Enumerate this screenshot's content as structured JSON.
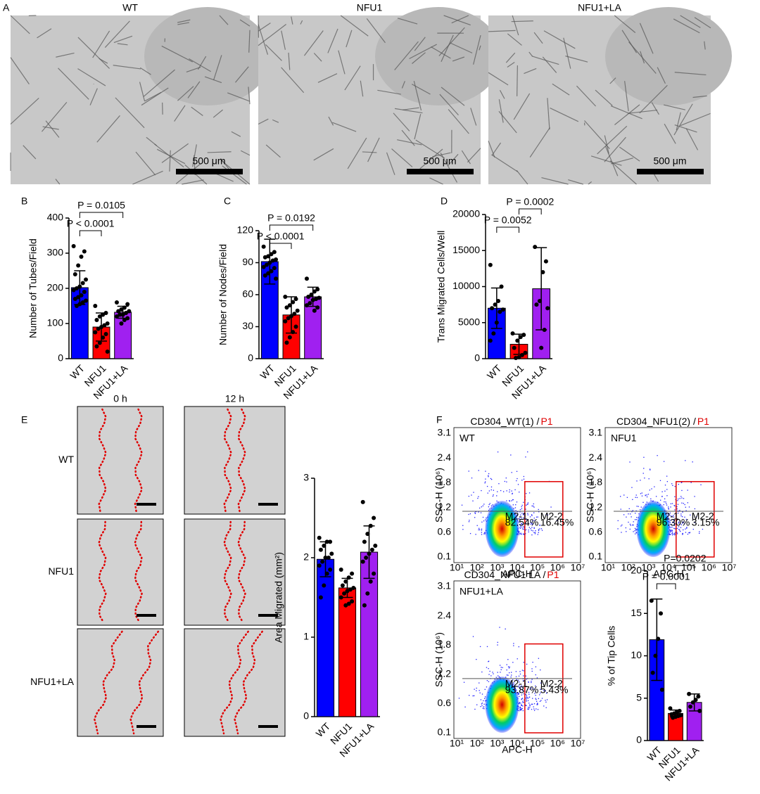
{
  "panel_letters": [
    "A",
    "B",
    "C",
    "D",
    "E",
    "F"
  ],
  "micrographs": {
    "titles": [
      "WT",
      "NFU1",
      "NFU1+LA"
    ],
    "scale_bar": "500 μm"
  },
  "wound": {
    "columns": [
      "0 h",
      "12 h"
    ],
    "rows": [
      "WT",
      "NFU1",
      "NFU1+LA"
    ]
  },
  "flow": {
    "y_axis": "SSC-H (10⁶)",
    "x_axis": "APC-H",
    "yticks": [
      "0.1",
      "0.6",
      "1.2",
      "1.8",
      "2.4",
      "3.1"
    ],
    "xticks": [
      "10¹",
      "10²",
      "10³",
      "10⁴",
      "10⁵",
      "10⁶",
      "10⁷"
    ],
    "plots": [
      {
        "header": "CD304_WT(1) /",
        "gate": "P1",
        "label": "WT",
        "left_gate": "M2-1",
        "left_pct": "82.54%",
        "right_gate": "M2-2",
        "right_pct": "16.45%"
      },
      {
        "header": "CD304_NFU1(2) /",
        "gate": "P1",
        "label": "NFU1",
        "left_gate": "M2-1",
        "left_pct": "96.30%",
        "right_gate": "M2-2",
        "right_pct": "3.15%"
      },
      {
        "header": "CD304_NFU1 LA /",
        "gate": "P1",
        "label": "NFU1+LA",
        "left_gate": "M2-1",
        "left_pct": "93.87%",
        "right_gate": "M2-2",
        "right_pct": "5.43%"
      }
    ]
  },
  "chart_data": [
    {
      "type": "bar",
      "y_label": "Number of Tubes/Field",
      "categories": [
        "WT",
        "NFU1",
        "NFU1+LA"
      ],
      "colors": [
        "#0000ff",
        "#ff0000",
        "#a020f0"
      ],
      "values": [
        202,
        90,
        132
      ],
      "errors": [
        48,
        40,
        17
      ],
      "points": [
        [
          320,
          305,
          290,
          265,
          240,
          225,
          215,
          205,
          200,
          195,
          190,
          180,
          175,
          170,
          165,
          160,
          155,
          150
        ],
        [
          150,
          130,
          125,
          120,
          110,
          100,
          95,
          90,
          85,
          75,
          70,
          60,
          45,
          35,
          20
        ],
        [
          160,
          155,
          145,
          140,
          135,
          135,
          130,
          125,
          125,
          120,
          115,
          110,
          100
        ]
      ],
      "ylim": [
        0,
        400
      ],
      "yticks": [
        0,
        100,
        200,
        300,
        400
      ],
      "comparisons": [
        {
          "groups": [
            0,
            1
          ],
          "label": "P < 0.0001"
        },
        {
          "groups": [
            0,
            2
          ],
          "label": "P = 0.0105"
        }
      ]
    },
    {
      "type": "bar",
      "y_label": "Number of Nodes/Field",
      "categories": [
        "WT",
        "NFU1",
        "NFU1+LA"
      ],
      "colors": [
        "#0000ff",
        "#ff0000",
        "#a020f0"
      ],
      "values": [
        91,
        41,
        58
      ],
      "errors": [
        21,
        17,
        9
      ],
      "points": [
        [
          105,
          100,
          98,
          96,
          95,
          93,
          92,
          90,
          88,
          86,
          85,
          82,
          80,
          78,
          75
        ],
        [
          58,
          56,
          53,
          50,
          48,
          45,
          42,
          40,
          38,
          35,
          30,
          25,
          20,
          15
        ],
        [
          75,
          65,
          63,
          60,
          58,
          57,
          56,
          55,
          52,
          50,
          48,
          45
        ]
      ],
      "ylim": [
        0,
        120
      ],
      "yticks": [
        0,
        30,
        60,
        90,
        120
      ],
      "comparisons": [
        {
          "groups": [
            0,
            1
          ],
          "label": "P < 0.0001"
        },
        {
          "groups": [
            0,
            2
          ],
          "label": "P = 0.0192"
        }
      ]
    },
    {
      "type": "bar",
      "y_label": "Trans Migrated Cells/Well",
      "categories": [
        "WT",
        "NFU1",
        "NFU1+LA"
      ],
      "colors": [
        "#0000ff",
        "#ff0000",
        "#a020f0"
      ],
      "values": [
        7000,
        2000,
        9700
      ],
      "errors": [
        2800,
        1400,
        5700
      ],
      "points": [
        [
          13000,
          10000,
          8000,
          7500,
          7000,
          6800,
          6500,
          5000,
          3500,
          2500
        ],
        [
          3500,
          3300,
          3000,
          2500,
          1500,
          800,
          500,
          200,
          100
        ],
        [
          15500,
          13500,
          12000,
          8000,
          7500,
          7000,
          4000,
          1500
        ]
      ],
      "ylim": [
        0,
        20000
      ],
      "yticks": [
        0,
        5000,
        10000,
        15000,
        20000
      ],
      "comparisons": [
        {
          "groups": [
            0,
            1
          ],
          "label": "P = 0.0052"
        },
        {
          "groups": [
            1,
            2
          ],
          "label": "P = 0.0002"
        }
      ]
    },
    {
      "type": "bar",
      "y_label": "Area Migrated (mm²)",
      "categories": [
        "WT",
        "NFU1",
        "NFU1+LA"
      ],
      "colors": [
        "#0000ff",
        "#ff0000",
        "#a020f0"
      ],
      "values": [
        1.98,
        1.62,
        2.07
      ],
      "errors": [
        0.22,
        0.12,
        0.33
      ],
      "points": [
        [
          2.25,
          2.2,
          2.2,
          2.15,
          2.1,
          2.05,
          2.0,
          2.0,
          1.95,
          1.9,
          1.85,
          1.8,
          1.65,
          1.5
        ],
        [
          1.85,
          1.8,
          1.75,
          1.7,
          1.65,
          1.62,
          1.6,
          1.58,
          1.55,
          1.5,
          1.45,
          1.42,
          1.4
        ],
        [
          2.7,
          2.5,
          2.4,
          2.3,
          2.2,
          2.15,
          2.1,
          2.05,
          2.0,
          1.95,
          1.8,
          1.7,
          1.55,
          1.4
        ]
      ],
      "ylim": [
        0,
        3
      ],
      "yticks": [
        0,
        1,
        2,
        3
      ],
      "comparisons": []
    },
    {
      "type": "bar",
      "y_label": "% of Tip Cells",
      "categories": [
        "WT",
        "NFU1",
        "NFU1+LA"
      ],
      "colors": [
        "#0000ff",
        "#ff0000",
        "#a020f0"
      ],
      "values": [
        11.9,
        3.2,
        4.5
      ],
      "errors": [
        4.8,
        0.4,
        1.0
      ],
      "points": [
        [
          16.5,
          15,
          12,
          10,
          8,
          6
        ],
        [
          3.8,
          3.5,
          3.3,
          3.2,
          3.1,
          3.0,
          2.9,
          2.8,
          2.7
        ],
        [
          5.5,
          5.2,
          4.8,
          4.5,
          4,
          3.5
        ]
      ],
      "ylim": [
        0,
        20
      ],
      "yticks": [
        0,
        5,
        10,
        15,
        20
      ],
      "comparisons": [
        {
          "groups": [
            0,
            1
          ],
          "label": "P = 0.0001"
        },
        {
          "groups": [
            1,
            2
          ],
          "label": "P=0.0202"
        }
      ]
    }
  ]
}
